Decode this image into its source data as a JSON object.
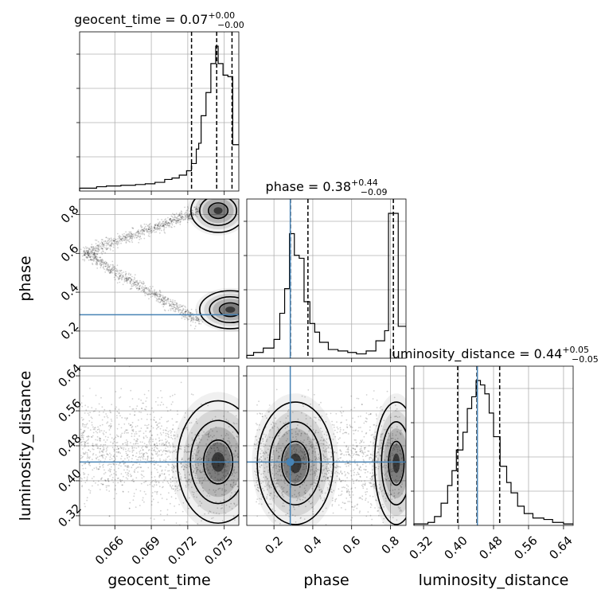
{
  "chart_data": {
    "type": "corner",
    "parameters": [
      "geocent_time",
      "phase",
      "luminosity_distance"
    ],
    "titles": [
      {
        "parameter": "geocent_time",
        "median": "0.07",
        "plus": "+0.00",
        "minus": "−0.00"
      },
      {
        "parameter": "phase",
        "median": "0.38",
        "plus": "+0.44",
        "minus": "−0.09"
      },
      {
        "parameter": "luminosity_distance",
        "median": "0.44",
        "plus": "+0.05",
        "minus": "−0.05"
      }
    ],
    "ranges": {
      "geocent_time": [
        0.0631,
        0.0762
      ],
      "phase": [
        0.06,
        0.88
      ],
      "luminosity_distance": [
        0.298,
        0.662
      ]
    },
    "ticks": {
      "geocent_time": {
        "values": [
          0.066,
          0.069,
          0.072,
          0.075
        ],
        "labels": [
          "0.066",
          "0.069",
          "0.072",
          "0.075"
        ]
      },
      "phase": {
        "values": [
          0.2,
          0.4,
          0.6,
          0.8
        ],
        "labels": [
          "0.2",
          "0.4",
          "0.6",
          "0.8"
        ]
      },
      "luminosity_distance": {
        "values": [
          0.32,
          0.4,
          0.48,
          0.56,
          0.64
        ],
        "labels": [
          "0.32",
          "0.40",
          "0.48",
          "0.56",
          "0.64"
        ]
      }
    },
    "injection": {
      "phase": 0.284,
      "luminosity_distance": 0.443
    },
    "quantiles": {
      "geocent_time": [
        0.07231,
        0.07438,
        0.07564
      ],
      "phase": [
        0.285,
        0.375,
        0.815
      ],
      "luminosity_distance": [
        0.398,
        0.442,
        0.494
      ]
    },
    "histograms": {
      "geocent_time": {
        "edges": [
          0.0631,
          0.0645,
          0.0653,
          0.0665,
          0.0677,
          0.0685,
          0.0693,
          0.0701,
          0.0707,
          0.0713,
          0.0719,
          0.0723,
          0.0727,
          0.0729,
          0.0731,
          0.0735,
          0.0739,
          0.0743,
          0.0745,
          0.0749,
          0.0751,
          0.0753,
          0.0757,
          0.0759,
          0.0762
        ],
        "counts": [
          0.02,
          0.03,
          0.035,
          0.04,
          0.045,
          0.05,
          0.06,
          0.08,
          0.09,
          0.11,
          0.14,
          0.19,
          0.29,
          0.33,
          0.52,
          0.68,
          0.88,
          1.0,
          0.88,
          0.8,
          0.8,
          0.79,
          0.32,
          0.32
        ]
      },
      "phase": {
        "edges": [
          0.06,
          0.095,
          0.145,
          0.2,
          0.23,
          0.255,
          0.28,
          0.305,
          0.33,
          0.355,
          0.385,
          0.41,
          0.435,
          0.48,
          0.53,
          0.58,
          0.625,
          0.675,
          0.725,
          0.77,
          0.79,
          0.84,
          0.88
        ],
        "counts": [
          0.02,
          0.04,
          0.07,
          0.13,
          0.31,
          0.48,
          0.86,
          0.71,
          0.69,
          0.39,
          0.24,
          0.18,
          0.11,
          0.06,
          0.05,
          0.04,
          0.03,
          0.05,
          0.12,
          0.19,
          1.0,
          0.22
        ]
      },
      "luminosity_distance": {
        "edges": [
          0.298,
          0.33,
          0.345,
          0.36,
          0.375,
          0.385,
          0.395,
          0.41,
          0.42,
          0.43,
          0.44,
          0.45,
          0.46,
          0.47,
          0.48,
          0.495,
          0.51,
          0.52,
          0.535,
          0.55,
          0.57,
          0.595,
          0.615,
          0.64,
          0.662
        ],
        "counts": [
          0.01,
          0.02,
          0.06,
          0.15,
          0.27,
          0.37,
          0.51,
          0.63,
          0.79,
          0.87,
          0.98,
          0.95,
          0.89,
          0.76,
          0.6,
          0.4,
          0.29,
          0.22,
          0.13,
          0.08,
          0.05,
          0.04,
          0.02,
          0.01
        ]
      }
    },
    "contour_levels": 3,
    "grid": true
  }
}
